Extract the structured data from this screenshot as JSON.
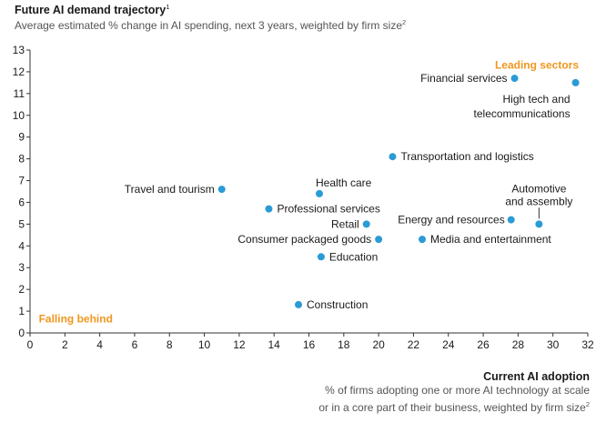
{
  "chart_data": {
    "type": "scatter",
    "title": "Future AI demand trajectory",
    "title_note": "1",
    "subtitle": "Average estimated % change in AI spending, next 3 years, weighted by firm size",
    "subtitle_note": "2",
    "xlabel": "Current AI adoption",
    "xlabel_sub_line1": "% of firms adopting one or more AI technology at scale",
    "xlabel_sub_line2": "or in a core part of their business, weighted by firm size",
    "xlabel_sub_note": "2",
    "xlim": [
      0,
      32
    ],
    "ylim": [
      0,
      13
    ],
    "xticks": [
      0,
      2,
      4,
      6,
      8,
      10,
      12,
      14,
      16,
      18,
      20,
      22,
      24,
      26,
      28,
      30,
      32
    ],
    "yticks": [
      0,
      1,
      2,
      3,
      4,
      5,
      6,
      7,
      8,
      9,
      10,
      11,
      12,
      13
    ],
    "point_color": "#2b9bd6",
    "annotation_color": "#f0961e",
    "annotations": {
      "leading": "Leading sectors",
      "falling": "Falling behind"
    },
    "points": [
      {
        "label": "Financial services",
        "x": 27.8,
        "y": 11.7
      },
      {
        "label": "High tech and telecommunications",
        "label_lines": [
          "High tech and",
          "telecommunications"
        ],
        "x": 31.3,
        "y": 11.5
      },
      {
        "label": "Transportation and logistics",
        "x": 20.8,
        "y": 8.1
      },
      {
        "label": "Travel and tourism",
        "x": 11.0,
        "y": 6.6
      },
      {
        "label": "Health care",
        "x": 16.6,
        "y": 6.4
      },
      {
        "label": "Professional services",
        "x": 13.7,
        "y": 5.7
      },
      {
        "label": "Retail",
        "x": 19.3,
        "y": 5.0
      },
      {
        "label": "Energy and resources",
        "x": 27.6,
        "y": 5.2
      },
      {
        "label": "Automotive and assembly",
        "label_lines": [
          "Automotive",
          "and assembly"
        ],
        "x": 29.2,
        "y": 5.0
      },
      {
        "label": "Consumer packaged goods",
        "x": 20.0,
        "y": 4.3
      },
      {
        "label": "Media and entertainment",
        "x": 22.5,
        "y": 4.3
      },
      {
        "label": "Education",
        "x": 16.7,
        "y": 3.5
      },
      {
        "label": "Construction",
        "x": 15.4,
        "y": 1.3
      }
    ]
  }
}
